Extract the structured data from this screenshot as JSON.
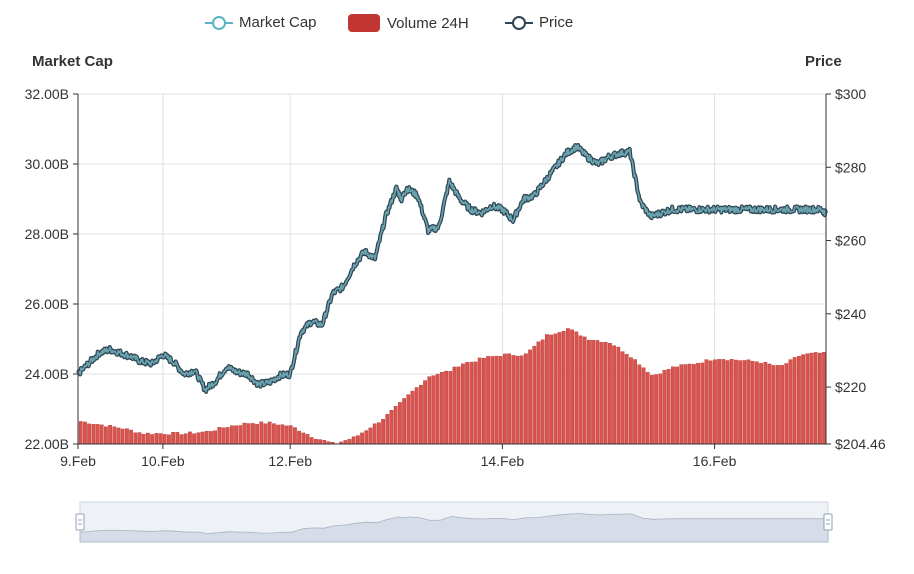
{
  "legend": {
    "items": [
      {
        "label": "Market Cap",
        "color": "#5bb4c4",
        "shape": "line"
      },
      {
        "label": "Volume 24H",
        "color": "#c23531",
        "shape": "rect"
      },
      {
        "label": "Price",
        "color": "#2f4554",
        "shape": "line"
      }
    ]
  },
  "axes": {
    "left_title": "Market Cap",
    "right_title": "Price"
  },
  "colors": {
    "line_outer": "#2f4554",
    "line_inner": "#6aa3ad",
    "volume_fill": "#d9534f",
    "volume_stroke": "#b83a35",
    "grid": "#e0e0e0",
    "axis": "#333333",
    "slider_fill": "#d6dde8"
  },
  "chart_data": {
    "type": "line",
    "title": "",
    "left_axis": {
      "label": "Market Cap",
      "ylim": [
        22.0,
        32.0
      ],
      "ticks": [
        "32.00B",
        "30.00B",
        "28.00B",
        "26.00B",
        "24.00B",
        "22.00B"
      ],
      "tick_values": [
        32,
        30,
        28,
        26,
        24,
        22
      ]
    },
    "right_axis": {
      "label": "Price",
      "ylim": [
        204.46,
        300
      ],
      "ticks": [
        "$300",
        "$280",
        "$260",
        "$240",
        "$220",
        "$204.46"
      ],
      "tick_values": [
        300,
        280,
        260,
        240,
        220,
        204.46
      ]
    },
    "x_axis": {
      "range": [
        9.0,
        16.05
      ],
      "ticks": [
        "9.Feb",
        "10.Feb",
        "12.Feb",
        "14.Feb",
        "16.Feb"
      ],
      "tick_values": [
        9.0,
        9.8,
        11.0,
        13.0,
        15.0
      ]
    },
    "grid": true,
    "series": [
      {
        "name": "Market Cap",
        "x": [
          9.0,
          9.1,
          9.2,
          9.3,
          9.4,
          9.5,
          9.6,
          9.7,
          9.8,
          9.9,
          10.0,
          10.1,
          10.2,
          10.3,
          10.4,
          10.5,
          10.6,
          10.7,
          10.8,
          10.9,
          11.0,
          11.1,
          11.2,
          11.3,
          11.4,
          11.5,
          11.6,
          11.7,
          11.8,
          11.9,
          12.0,
          12.05,
          12.1,
          12.2,
          12.3,
          12.4,
          12.5,
          12.6,
          12.7,
          12.8,
          12.9,
          13.0,
          13.1,
          13.2,
          13.3,
          13.4,
          13.5,
          13.6,
          13.7,
          13.8,
          13.9,
          14.0,
          14.1,
          14.2,
          14.3,
          14.4,
          14.5,
          14.6,
          14.7,
          14.8,
          14.9,
          15.0,
          15.1,
          15.2,
          15.3,
          15.4,
          15.5,
          15.6,
          15.7,
          15.8,
          15.9,
          16.0,
          16.05
        ],
        "values": [
          24.0,
          24.3,
          24.6,
          24.7,
          24.6,
          24.5,
          24.35,
          24.3,
          24.55,
          24.35,
          24.0,
          24.1,
          23.55,
          23.8,
          24.2,
          24.05,
          24.0,
          23.7,
          23.75,
          23.95,
          24.0,
          25.2,
          25.5,
          25.4,
          26.3,
          26.5,
          27.1,
          27.5,
          27.3,
          28.5,
          29.3,
          29.0,
          29.3,
          29.1,
          28.1,
          28.2,
          29.5,
          29.0,
          28.7,
          28.6,
          28.8,
          28.7,
          28.4,
          29.0,
          29.1,
          29.5,
          29.9,
          30.3,
          30.5,
          30.2,
          30.0,
          30.2,
          30.3,
          30.35,
          28.9,
          28.5,
          28.6,
          28.7,
          28.7,
          28.7,
          28.7,
          28.7,
          28.7,
          28.7,
          28.7,
          28.7,
          28.7,
          28.7,
          28.7,
          28.7,
          28.7,
          28.7,
          28.6
        ]
      },
      {
        "name": "Price",
        "note_values": "overlaps Market Cap line"
      },
      {
        "name": "Volume 24H",
        "x": [
          9.0,
          9.2,
          9.4,
          9.6,
          9.8,
          10.0,
          10.2,
          10.4,
          10.6,
          10.8,
          11.0,
          11.2,
          11.4,
          11.6,
          11.8,
          11.85,
          12.0,
          12.1,
          12.3,
          12.5,
          12.6,
          12.7,
          12.8,
          13.0,
          13.2,
          13.4,
          13.6,
          13.8,
          14.0,
          14.2,
          14.4,
          14.6,
          14.8,
          15.0,
          15.2,
          15.4,
          15.6,
          15.8,
          16.0,
          16.05
        ],
        "values": [
          22.65,
          22.55,
          22.45,
          22.3,
          22.3,
          22.3,
          22.35,
          22.5,
          22.6,
          22.6,
          22.5,
          22.2,
          22.0,
          22.2,
          22.6,
          22.7,
          23.1,
          23.4,
          23.95,
          24.1,
          24.3,
          24.35,
          24.45,
          24.55,
          24.55,
          25.1,
          25.3,
          25.0,
          24.9,
          24.5,
          23.95,
          24.2,
          24.3,
          24.45,
          24.4,
          24.35,
          24.2,
          24.55,
          24.6,
          24.55
        ]
      }
    ],
    "data_zoom": {
      "start": 0,
      "end": 100
    }
  }
}
